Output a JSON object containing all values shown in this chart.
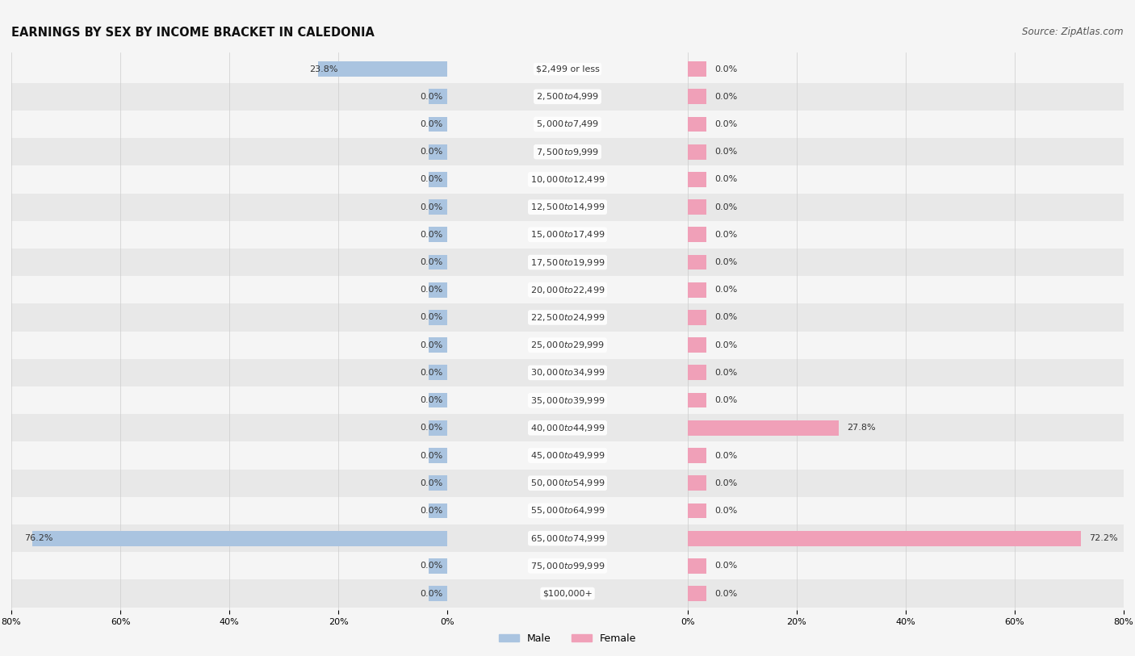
{
  "title": "EARNINGS BY SEX BY INCOME BRACKET IN CALEDONIA",
  "source": "Source: ZipAtlas.com",
  "categories": [
    "$2,499 or less",
    "$2,500 to $4,999",
    "$5,000 to $7,499",
    "$7,500 to $9,999",
    "$10,000 to $12,499",
    "$12,500 to $14,999",
    "$15,000 to $17,499",
    "$17,500 to $19,999",
    "$20,000 to $22,499",
    "$22,500 to $24,999",
    "$25,000 to $29,999",
    "$30,000 to $34,999",
    "$35,000 to $39,999",
    "$40,000 to $44,999",
    "$45,000 to $49,999",
    "$50,000 to $54,999",
    "$55,000 to $64,999",
    "$65,000 to $74,999",
    "$75,000 to $99,999",
    "$100,000+"
  ],
  "male_values": [
    23.8,
    0.0,
    0.0,
    0.0,
    0.0,
    0.0,
    0.0,
    0.0,
    0.0,
    0.0,
    0.0,
    0.0,
    0.0,
    0.0,
    0.0,
    0.0,
    0.0,
    76.2,
    0.0,
    0.0
  ],
  "female_values": [
    0.0,
    0.0,
    0.0,
    0.0,
    0.0,
    0.0,
    0.0,
    0.0,
    0.0,
    0.0,
    0.0,
    0.0,
    0.0,
    27.8,
    0.0,
    0.0,
    0.0,
    72.2,
    0.0,
    0.0
  ],
  "male_color": "#aac4e0",
  "female_color": "#f0a0b8",
  "stub": 3.5,
  "xlim": 80.0,
  "row_bg_even": "#f5f5f5",
  "row_bg_odd": "#e8e8e8",
  "fig_bg": "#f5f5f5",
  "title_fontsize": 10.5,
  "source_fontsize": 8.5,
  "label_fontsize": 8,
  "cat_fontsize": 8,
  "axis_tick_fontsize": 8,
  "bar_height": 0.55
}
